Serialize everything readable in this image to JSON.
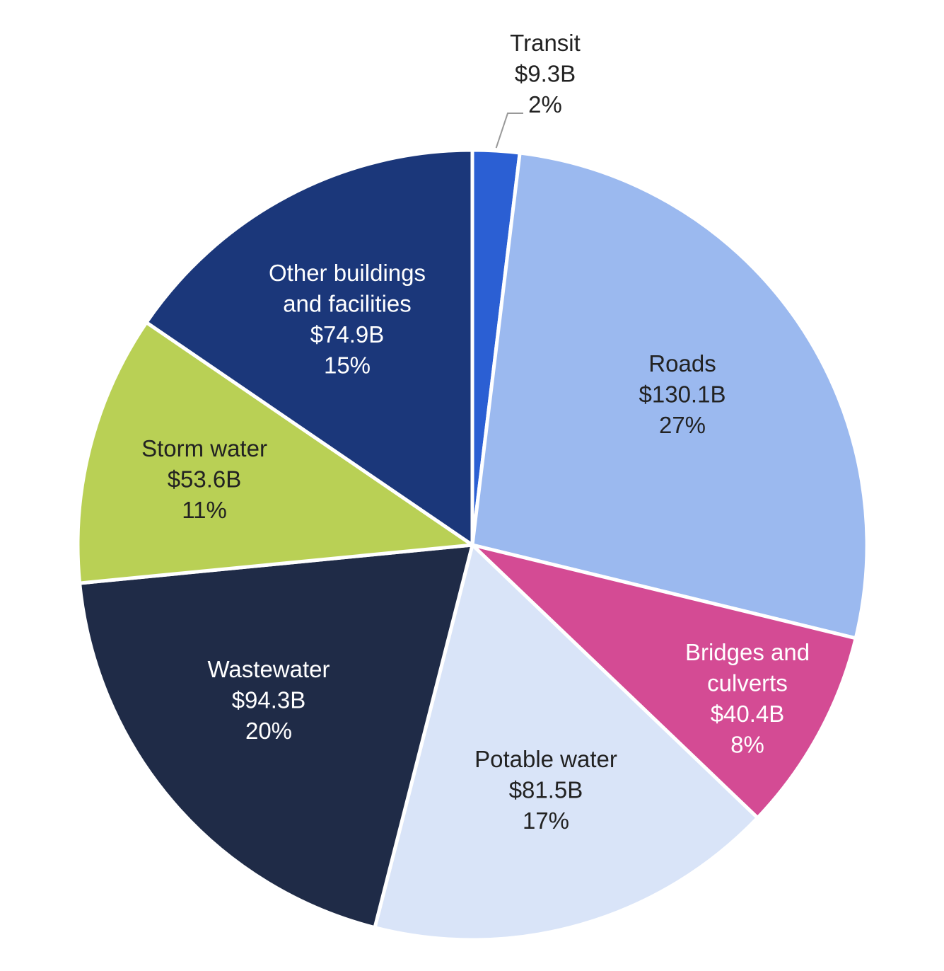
{
  "chart_data": {
    "type": "pie",
    "title": "",
    "start_angle_deg": 0,
    "direction": "clockwise",
    "slices": [
      {
        "name": "Transit",
        "value": 9.3,
        "value_label": "$9.3B",
        "percent_label": "2%",
        "color": "#2b5fd3",
        "label_color": "#222222"
      },
      {
        "name": "Roads",
        "value": 130.1,
        "value_label": "$130.1B",
        "percent_label": "27%",
        "color": "#9bb9ef",
        "label_color": "#222222"
      },
      {
        "name": "Bridges and culverts",
        "value": 40.4,
        "value_label": "$40.4B",
        "percent_label": "8%",
        "color": "#d44b94",
        "label_color": "#ffffff"
      },
      {
        "name": "Potable water",
        "value": 81.5,
        "value_label": "$81.5B",
        "percent_label": "17%",
        "color": "#d9e4f8",
        "label_color": "#222222"
      },
      {
        "name": "Wastewater",
        "value": 94.3,
        "value_label": "$94.3B",
        "percent_label": "20%",
        "color": "#1f2b47",
        "label_color": "#ffffff"
      },
      {
        "name": "Storm water",
        "value": 53.6,
        "value_label": "$53.6B",
        "percent_label": "11%",
        "color": "#b9d055",
        "label_color": "#222222"
      },
      {
        "name": "Other buildings and facilities",
        "value": 74.9,
        "value_label": "$74.9B",
        "percent_label": "15%",
        "color": "#1b377a",
        "label_color": "#ffffff"
      }
    ]
  }
}
